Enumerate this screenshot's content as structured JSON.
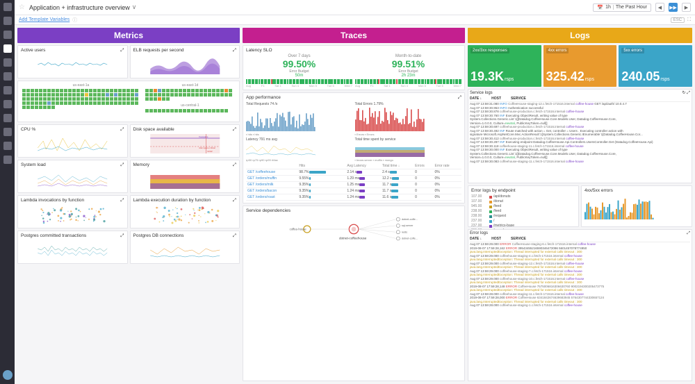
{
  "header": {
    "title": "Application + infrastructure overview",
    "time_label": "The Past Hour",
    "add_vars": "Add Template Variables",
    "esc": "ESC"
  },
  "sections": {
    "metrics": "Metrics",
    "traces": "Traces",
    "logs": "Logs"
  },
  "metrics": {
    "panels": [
      {
        "title": "Active users"
      },
      {
        "title": "ELB requests per second"
      },
      {
        "title_l": "us-east-1a",
        "title_r": "us-east-1d",
        "title_b": "us-central-1"
      },
      {
        "title": "CPU %"
      },
      {
        "title": "Disk space available"
      },
      {
        "title": "System load"
      },
      {
        "title": "Memory"
      },
      {
        "title": "Lambda invocations by function"
      },
      {
        "title": "Lambda execution duration by function"
      },
      {
        "title": "Postgres committed transactions"
      },
      {
        "title": "Postgres DB connections"
      }
    ]
  },
  "traces": {
    "slo_title": "Latency SLO",
    "slo": [
      {
        "period": "Over 7 days",
        "pct": "99.50%",
        "eb_label": "Error Budget",
        "eb": "50m"
      },
      {
        "period": "Month-to-date",
        "pct": "99.51%",
        "eb_label": "Error Budget",
        "eb": "2h 23m"
      }
    ],
    "app_perf": "App performance",
    "total_req": {
      "label": "Total Requests",
      "val": "74 /s"
    },
    "total_err": {
      "label": "Total Errors",
      "val": "1.79%"
    },
    "latency": {
      "label": "Latency",
      "val": "791 ms avg"
    },
    "time_by_svc": "Total time spent by service",
    "table": {
      "cols": [
        "",
        "Hits",
        "Avg Latency",
        "Total time ↓",
        "Errors",
        "Error rate"
      ],
      "rows": [
        [
          "GET /coffeehouse",
          "98.7%",
          "2.14 s",
          "2.4 s",
          0,
          "0%"
        ],
        [
          "GET /orders/muffin",
          "9.55%",
          "1.29 ms",
          "12.2 s",
          0,
          "0%"
        ],
        [
          "GET /orders/milk",
          "9.35%",
          "1.25 ms",
          "11.7 s",
          0,
          "0%"
        ],
        [
          "GET /orders/bacon",
          "9.35%",
          "1.24 ms",
          "11.7 s",
          0,
          "0%"
        ],
        [
          "GET /orders/roast",
          "9.35%",
          "1.24 ms",
          "11.6 s",
          0,
          "0%"
        ]
      ]
    },
    "deps": {
      "title": "Service dependencies",
      "center": "coffee-house",
      "focus": "dotnet-coffeehouse",
      "nodes": [
        "dotnet-coffe...",
        "sql-server",
        "redis",
        "dotnet-coffe..."
      ]
    }
  },
  "logs": {
    "big": [
      {
        "label": "2xx/3xx responses",
        "val": "19.3K",
        "unit": "rsps",
        "cls": "bn-g"
      },
      {
        "label": "4xx errors",
        "val": "325.42",
        "unit": "rsps",
        "cls": "bn-o"
      },
      {
        "label": "5xx errors",
        "val": "240.05",
        "unit": "rsps",
        "cls": "bn-b"
      }
    ],
    "service_logs": {
      "title": "Service logs",
      "cols": [
        "DATE ↓",
        "HOST",
        "SERVICE"
      ]
    },
    "svc_lines": [
      {
        "ts": "Aug 07 13:59:31.080",
        "lvl": "INFO",
        "host": "CoffeeHouse-staging-12.c.fetch-171516.internal",
        "svc": "coffee-house",
        "msg": "GET /api/auth/ 10.0.4.7"
      },
      {
        "ts": "Aug 07 13:59:30.953",
        "lvl": "INFO",
        "host": "",
        "svc": "",
        "msg": "Authentication successful"
      },
      {
        "ts": "Aug 07 13:59:30.878",
        "lvl": "",
        "host": "coffeehouse-production.c.fetch-171516.internal",
        "svc": "coffee-house",
        "msg": ""
      },
      {
        "ts": "Aug 07 13:59:30.760",
        "lvl": "INF",
        "host": "",
        "svc": "",
        "msg": "Executing ObjectResult, writing value of type"
      },
      {
        "ts": "",
        "lvl": "",
        "host": "",
        "svc": "",
        "msg": "System.Collections.Generic.List`1[[Datadog.CoffeeHouse.Core.Models.User, Datadog.CoffeeHouse.Core,"
      },
      {
        "ts": "",
        "lvl": "",
        "host": "",
        "svc": "",
        "msg": "Version=1.0.0.0, Culture=neutral, PublicKeyToken=null]]"
      },
      {
        "ts": "Aug 07 13:59:30.697",
        "lvl": "",
        "host": "coffeehouse-production.c.fetch-171516.internal",
        "svc": "coffee-house",
        "msg": ""
      },
      {
        "ts": "Aug 07 13:59:30.492",
        "lvl": "INF",
        "host": "",
        "svc": "",
        "msg": "Route matched with action = Get, controller = Users . Executing controller action with"
      },
      {
        "ts": "",
        "lvl": "",
        "host": "",
        "svc": "",
        "msg": "signature Microsoft.AspNetCore.Mvc.ActionResult`1[System.Collections.Generic.IEnumerable`1[Datadog.CoffeeHouse.Cor..."
      },
      {
        "ts": "Aug 07 13:59:30.412",
        "lvl": "",
        "host": "coffeehouse-production.c.fetch-171516.internal",
        "svc": "coffee-house",
        "msg": ""
      },
      {
        "ts": "Aug 07 13:59:30.287",
        "lvl": "INF",
        "host": "",
        "svc": "",
        "msg": "Executing endpoint Datadog.CoffeeHouse.Api.Controllers.UsersController.Get (Datadog.CoffeeHouse.Api)"
      },
      {
        "ts": "Aug 07 13:59:30.118",
        "lvl": "",
        "host": "coffeehouse-staging-11.c.fetch-171516.internal",
        "svc": "coffee-house",
        "msg": ""
      },
      {
        "ts": "Aug 07 13:59:30.000",
        "lvl": "INF",
        "host": "",
        "svc": "",
        "msg": "Executing ObjectResult, writing value of type"
      },
      {
        "ts": "",
        "lvl": "",
        "host": "",
        "svc": "",
        "msg": "System.Collections.Generic.List`1[[Datadog.CoffeeHouse.Core.Models.User, Datadog.CoffeeHouse.Core,"
      },
      {
        "ts": "",
        "lvl": "",
        "host": "",
        "svc": "",
        "msg": "Version=1.0.0.0, Culture=neutral, PublicKeyToken=null]]"
      },
      {
        "ts": "Aug 07 13:59:30.083",
        "lvl": "",
        "host": "coffeehouse-staging-11.c.fetch-171516.internal",
        "svc": "coffee-house",
        "msg": ""
      }
    ],
    "err_by_ep": {
      "title": "Error logs by endpoint",
      "items": [
        {
          "c": "#d84a4a",
          "t": "/api/donuts"
        },
        {
          "c": "#e89a2e",
          "t": "/donut"
        },
        {
          "c": "#c9a020",
          "t": "/feed"
        },
        {
          "c": "#2eb35a",
          "t": "/feed"
        },
        {
          "c": "#2e9090",
          "t": "/request"
        },
        {
          "c": "#3ba5c8",
          "t": "/"
        },
        {
          "c": "#7b3fc4",
          "t": "/metrics-base"
        },
        {
          "c": "#c41f8f",
          "t": "/search"
        }
      ],
      "counts": [
        "107.00",
        "107.00",
        "945.00",
        "238.00",
        "238.00",
        "237.00",
        "237.00",
        "231.00"
      ]
    },
    "err_chart": "4xx/5xx errors",
    "error_logs": {
      "title": "Error logs",
      "cols": [
        "DATE ↓",
        "HOST",
        "SERVICE"
      ]
    },
    "err_lines": [
      {
        "ts": "Aug 07 13:59:29.000",
        "lvl": "ERROR",
        "host": "CoffeeHouse-staging-6.c.fetch-171516.internal",
        "svc": "coffee-house",
        "msg": ""
      },
      {
        "ts": "2019-08-07 17:59:28,162",
        "lvl": "ERROR",
        "host": "",
        "svc": "",
        "msg": "39543455216590346472096 5601457078774950"
      },
      {
        "ts": "",
        "lvl": "",
        "host": "",
        "svc": "",
        "msg": "java.lang.InterruptedException: Thread interrupted for external calls timeout : 300"
      },
      {
        "ts": "Aug 07 13:59:29.000",
        "lvl": "",
        "host": "coffeehouse-staging-4.c.fetch-171516.internal",
        "svc": "coffee-house",
        "msg": ""
      },
      {
        "ts": "",
        "lvl": "",
        "host": "",
        "svc": "",
        "msg": "java.lang.InterruptedException: Thread interrupted for external calls timeout : 300"
      },
      {
        "ts": "Aug 07 13:59:29.000",
        "lvl": "",
        "host": "coffeehouse-staging-12.c.fetch-171516.internal",
        "svc": "coffee-house",
        "msg": ""
      },
      {
        "ts": "",
        "lvl": "",
        "host": "",
        "svc": "",
        "msg": "java.lang.InterruptedException: Thread interrupted for external calls timeout : 300"
      },
      {
        "ts": "Aug 07 13:59:29.000",
        "lvl": "",
        "host": "coffeehouse-staging-7.c.fetch-171516.internal",
        "svc": "coffee-house",
        "msg": ""
      },
      {
        "ts": "",
        "lvl": "",
        "host": "",
        "svc": "",
        "msg": "java.lang.InterruptedException: Thread interrupted for external calls timeout : 300"
      },
      {
        "ts": "Aug 07 13:59:29.000",
        "lvl": "",
        "host": "coffeehouse-staging-10.c.fetch-171516.internal",
        "svc": "coffee-house",
        "msg": ""
      },
      {
        "ts": "",
        "lvl": "",
        "host": "",
        "svc": "",
        "msg": "java.lang.InterruptedException: Thread interrupted for external calls timeout : 300"
      },
      {
        "ts": "2019-08-07 17:59:28,148",
        "lvl": "ERROR",
        "host": "CoffeeHouse 7575006816306630760 9002194300205473775",
        "svc": "",
        "msg": ""
      },
      {
        "ts": "",
        "lvl": "",
        "host": "",
        "svc": "",
        "msg": "java.lang.InterruptedException: Thread interrupted for external calls timeout : 300"
      },
      {
        "ts": "Aug 07 13:59:28.000",
        "lvl": "",
        "host": "coffeehouse-staging-11.c.fetch-171516.internal",
        "svc": "coffee-house",
        "msg": ""
      },
      {
        "ts": "2019-08-07 17:59:28,000",
        "lvl": "ERROR",
        "host": "CoffeeHouse 6341842674639683945 5764307744330657124",
        "svc": "",
        "msg": ""
      },
      {
        "ts": "",
        "lvl": "",
        "host": "",
        "svc": "",
        "msg": "java.lang.InterruptedException: Thread interrupted for external calls timeout : 300"
      },
      {
        "ts": "Aug 07 13:59:28.000",
        "lvl": "",
        "host": "coffeehouse-staging-1.c.fetch-171516.internal",
        "svc": "coffee-house",
        "msg": ""
      }
    ]
  },
  "charts": {
    "c_blue": "#3ba5c8",
    "c_purple": "#7b3fc4",
    "c_green": "#2eb35a",
    "c_orange": "#e89a2e",
    "c_red": "#d84a4a",
    "c_yellow": "#e8c33a",
    "c_teal": "#2e9090",
    "c_pink": "#c41f8f"
  }
}
